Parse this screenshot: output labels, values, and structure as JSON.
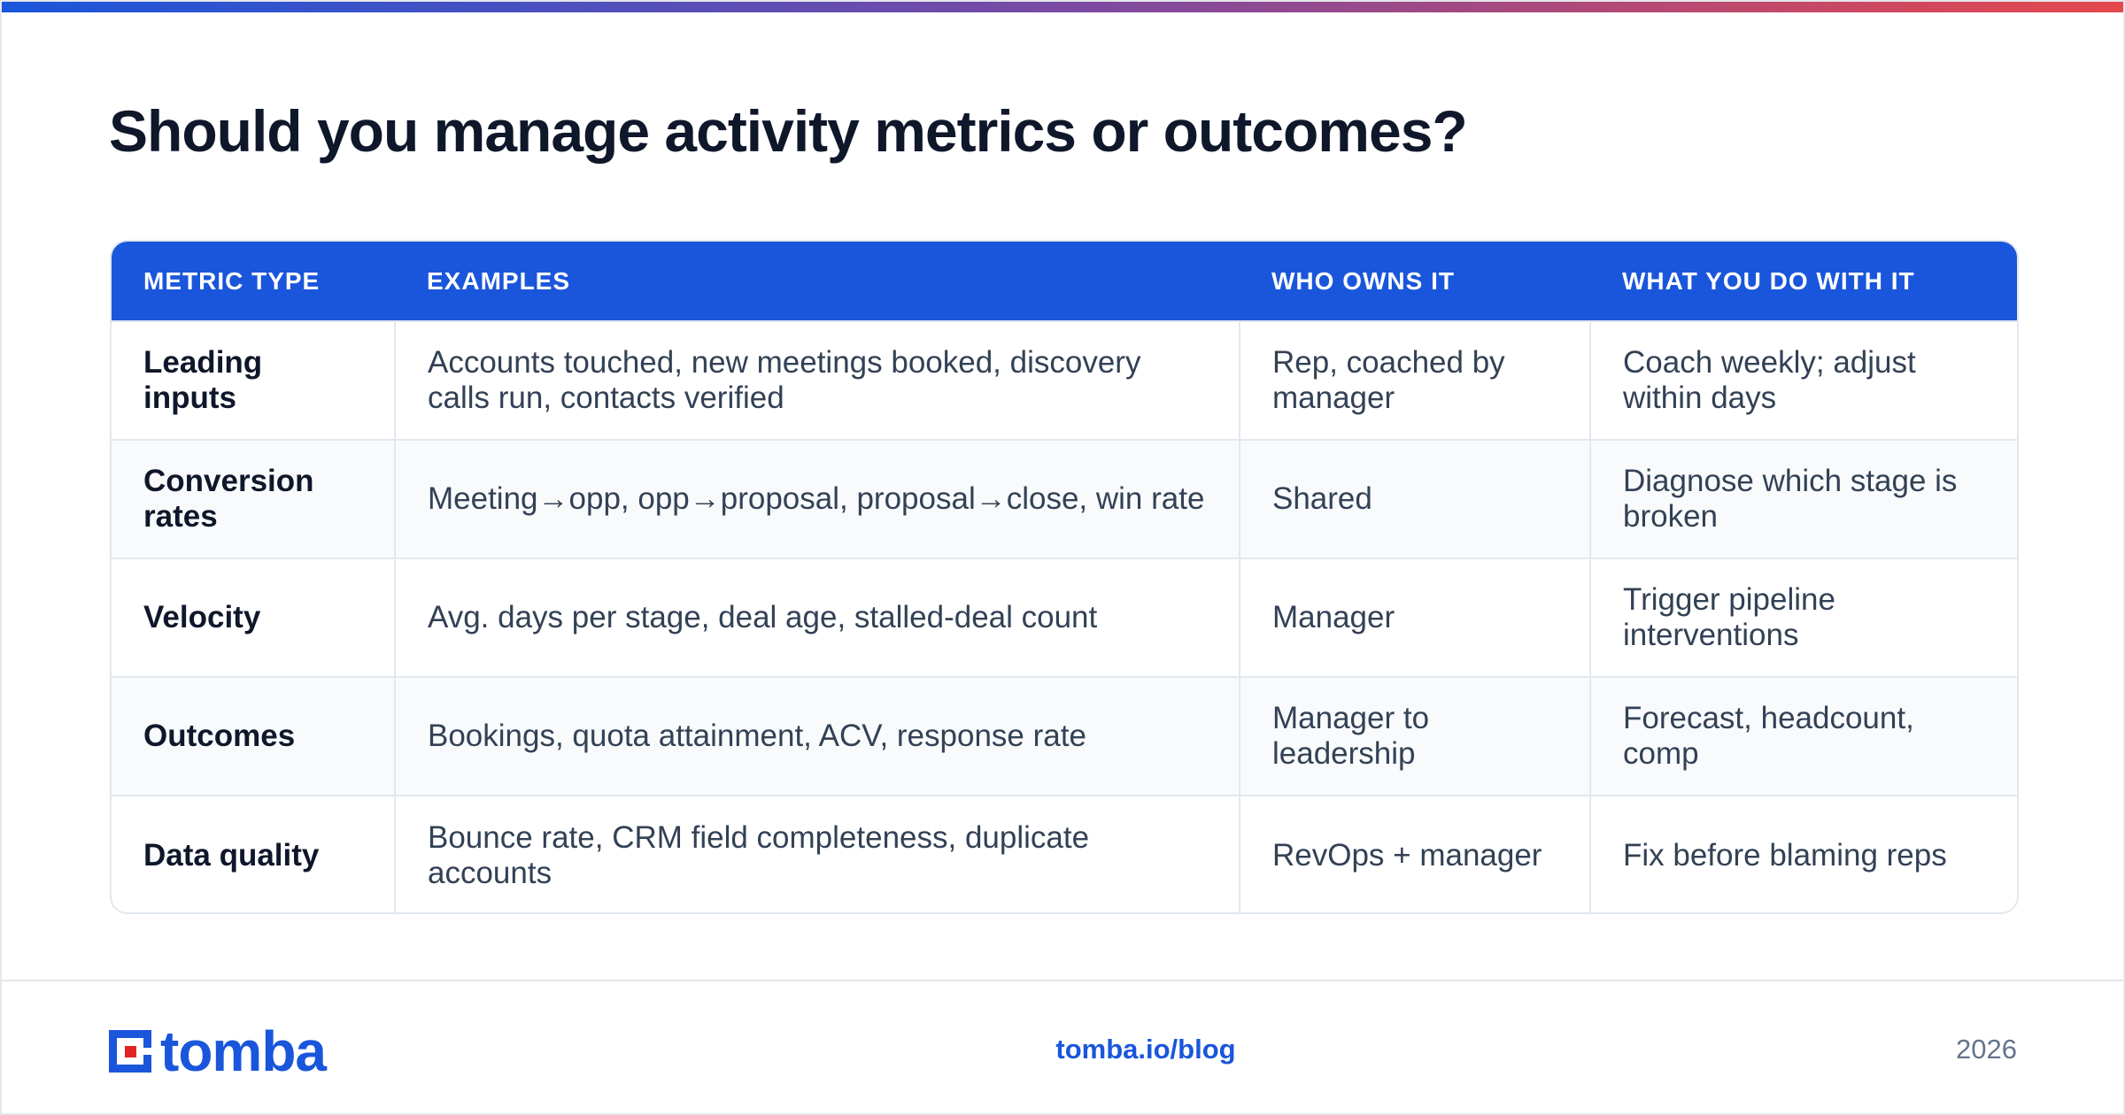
{
  "title": "Should you manage activity metrics or outcomes?",
  "table": {
    "headers": [
      "METRIC TYPE",
      "EXAMPLES",
      "WHO OWNS IT",
      "WHAT YOU DO WITH IT"
    ],
    "rows": [
      [
        "Leading inputs",
        "Accounts touched, new meetings booked, discovery calls run, contacts verified",
        "Rep, coached by manager",
        "Coach weekly; adjust within days"
      ],
      [
        "Conversion rates",
        "Meeting→opp, opp→proposal, proposal→close, win rate",
        "Shared",
        "Diagnose which stage is broken"
      ],
      [
        "Velocity",
        "Avg. days per stage, deal age, stalled-deal count",
        "Manager",
        "Trigger pipeline interventions"
      ],
      [
        "Outcomes",
        "Bookings, quota attainment, ACV, response rate",
        "Manager to leadership",
        "Forecast, headcount, comp"
      ],
      [
        "Data quality",
        "Bounce rate, CRM field completeness, duplicate accounts",
        "RevOps + manager",
        "Fix before blaming reps"
      ]
    ]
  },
  "footer": {
    "logo_text": "tomba",
    "link": "tomba.io/blog",
    "year": "2026"
  },
  "colors": {
    "brand_blue": "#1a56db",
    "logo_red": "#e02424",
    "title": "#0f172a"
  }
}
